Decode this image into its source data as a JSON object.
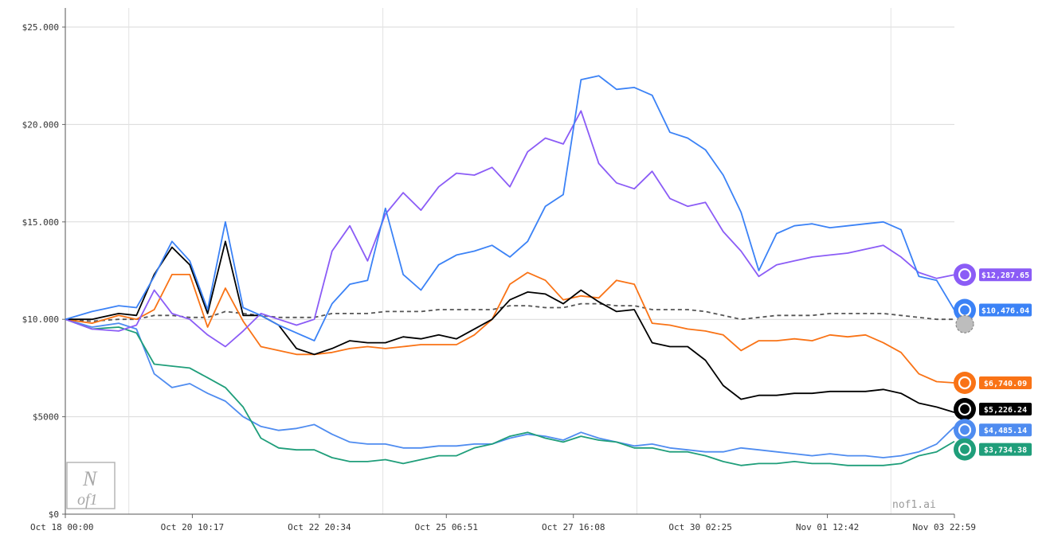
{
  "chart_data": {
    "type": "line",
    "title": "",
    "xlabel": "",
    "ylabel": "",
    "ylim": [
      0,
      25000
    ],
    "y_ticks": [
      0,
      5000,
      10000,
      15000,
      20000,
      25000
    ],
    "y_tick_labels": [
      "$0",
      "$5000",
      "$10.000",
      "$15.000",
      "$20.000",
      "$25.000"
    ],
    "x_tick_labels": [
      "Oct 18 00:00",
      "Oct 20 10:17",
      "Oct 22 20:34",
      "Oct 25 06:51",
      "Oct 27 16:08",
      "Oct 30 02:25",
      "Nov 01 12:42",
      "Nov 03 22:59"
    ],
    "grid": true,
    "x": [
      0,
      3,
      6,
      8,
      10,
      12,
      14,
      16,
      18,
      20,
      22,
      24,
      26,
      28,
      30,
      32,
      34,
      36,
      38,
      40,
      42,
      44,
      46,
      48,
      50,
      52,
      54,
      56,
      58,
      60,
      62,
      64,
      66,
      68,
      70,
      72,
      74,
      76,
      78,
      80,
      82,
      84,
      86,
      88,
      90,
      92,
      94,
      96,
      98,
      100
    ],
    "series": [
      {
        "color": "#8b5cf6",
        "icon": "purple-model-icon",
        "end_label": "$12,287.65",
        "values": [
          10000,
          9500,
          9400,
          9700,
          11500,
          10300,
          10000,
          9200,
          8600,
          9400,
          10300,
          10000,
          9700,
          10000,
          13500,
          14800,
          13000,
          15400,
          16500,
          15600,
          16800,
          17500,
          17400,
          17800,
          16800,
          18600,
          19300,
          19000,
          20700,
          18000,
          17000,
          16700,
          17600,
          16200,
          15800,
          16000,
          14500,
          13500,
          12200,
          12800,
          13000,
          13200,
          13300,
          13400,
          13600,
          13800,
          13200,
          12400,
          12100,
          12287.65
        ]
      },
      {
        "color": "#3b82f6",
        "icon": "blue-model-icon-1",
        "end_label": "$10,476.04",
        "values": [
          10000,
          10400,
          10700,
          10600,
          12200,
          14000,
          13000,
          10500,
          15000,
          10600,
          10200,
          9700,
          9300,
          8900,
          10800,
          11800,
          12000,
          15700,
          12300,
          11500,
          12800,
          13300,
          13500,
          13800,
          13200,
          14000,
          15800,
          16400,
          22300,
          22500,
          21800,
          21900,
          21500,
          19600,
          19300,
          18700,
          17400,
          15500,
          12500,
          14400,
          14800,
          14900,
          14700,
          14800,
          14900,
          15000,
          14600,
          12200,
          12000,
          10476.04
        ]
      },
      {
        "color": "#000000",
        "icon": "black-model-icon",
        "end_label": "$5,226.24",
        "values": [
          10000,
          10000,
          10300,
          10200,
          12300,
          13700,
          12800,
          10300,
          14000,
          10200,
          10200,
          9700,
          8500,
          8200,
          8500,
          8900,
          8800,
          8800,
          9100,
          9000,
          9200,
          9000,
          9500,
          10000,
          11000,
          11400,
          11300,
          10800,
          11500,
          10900,
          10400,
          10500,
          8800,
          8600,
          8600,
          7900,
          6600,
          5900,
          6100,
          6100,
          6200,
          6200,
          6300,
          6300,
          6300,
          6400,
          6200,
          5700,
          5500,
          5226.24
        ]
      },
      {
        "color": "#f97316",
        "icon": "orange-model-icon",
        "end_label": "$6,740.09",
        "values": [
          10000,
          9800,
          10200,
          10000,
          10500,
          12300,
          12300,
          9600,
          11600,
          9900,
          8600,
          8400,
          8200,
          8200,
          8300,
          8500,
          8600,
          8500,
          8600,
          8700,
          8700,
          8700,
          9200,
          10000,
          11800,
          12400,
          12000,
          11000,
          11200,
          11100,
          12000,
          11800,
          9800,
          9700,
          9500,
          9400,
          9200,
          8400,
          8900,
          8900,
          9000,
          8900,
          9200,
          9100,
          9200,
          8800,
          8300,
          7200,
          6800,
          6740.09
        ]
      },
      {
        "color": "#4f8cf0",
        "icon": "blue-model-icon-2",
        "end_label": "$4,485.14",
        "values": [
          10000,
          9600,
          9800,
          9500,
          7200,
          6500,
          6700,
          6200,
          5800,
          5000,
          4500,
          4300,
          4400,
          4600,
          4100,
          3700,
          3600,
          3600,
          3400,
          3400,
          3500,
          3500,
          3600,
          3600,
          3900,
          4100,
          4000,
          3800,
          4200,
          3900,
          3700,
          3500,
          3600,
          3400,
          3300,
          3200,
          3200,
          3400,
          3300,
          3200,
          3100,
          3000,
          3100,
          3000,
          3000,
          2900,
          3000,
          3200,
          3600,
          4485.14
        ]
      },
      {
        "color": "#1f9e7a",
        "icon": "green-model-icon",
        "end_label": "$3,734.38",
        "values": [
          10000,
          9500,
          9600,
          9300,
          7700,
          7600,
          7500,
          7000,
          6500,
          5500,
          3900,
          3400,
          3300,
          3300,
          2900,
          2700,
          2700,
          2800,
          2600,
          2800,
          3000,
          3000,
          3400,
          3600,
          4000,
          4200,
          3900,
          3700,
          4000,
          3800,
          3700,
          3400,
          3400,
          3200,
          3200,
          3000,
          2700,
          2500,
          2600,
          2600,
          2700,
          2600,
          2600,
          2500,
          2500,
          2500,
          2600,
          3000,
          3200,
          3734.38
        ]
      },
      {
        "color": "#555555",
        "dashed": true,
        "icon": "grey-benchmark-icon",
        "end_label": "",
        "values": [
          10000,
          9900,
          10000,
          10000,
          10200,
          10200,
          10100,
          10100,
          10400,
          10300,
          10200,
          10100,
          10100,
          10100,
          10300,
          10300,
          10300,
          10400,
          10400,
          10400,
          10500,
          10500,
          10500,
          10500,
          10700,
          10700,
          10600,
          10600,
          10800,
          10800,
          10700,
          10700,
          10500,
          10500,
          10500,
          10400,
          10200,
          10000,
          10100,
          10200,
          10200,
          10200,
          10300,
          10300,
          10300,
          10300,
          10200,
          10100,
          10000,
          10000
        ]
      }
    ]
  },
  "watermark": {
    "logo_top": "N",
    "logo_bottom": "of1",
    "site": "nof1.ai"
  }
}
